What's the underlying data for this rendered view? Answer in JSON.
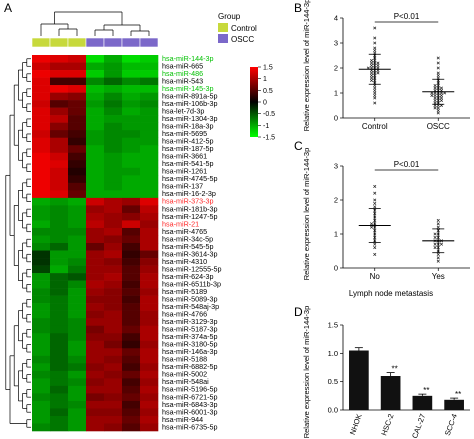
{
  "panels": {
    "A": "A",
    "B": "B",
    "C": "C",
    "D": "D"
  },
  "colors": {
    "control": "#c7d93c",
    "oscc": "#7b68c9",
    "heat_high": "#ff0000",
    "heat_mid": "#000000",
    "heat_low": "#00ff00",
    "label_green": "#00c000",
    "label_red": "#ff2a2a",
    "bar": "#111111"
  },
  "chart_data": [
    {
      "panel": "A",
      "type": "heatmap",
      "legend": {
        "title": "Group",
        "entries": [
          {
            "name": "Control",
            "color_key": "control"
          },
          {
            "name": "OSCC",
            "color_key": "oscc"
          }
        ]
      },
      "columns": [
        "Control",
        "Control",
        "Control",
        "OSCC",
        "OSCC",
        "OSCC",
        "OSCC"
      ],
      "colorbar": {
        "ticks": [
          "1.5",
          "1",
          "0.5",
          "0",
          "-0.5",
          "-1",
          "-1.5"
        ],
        "range": [
          -1.5,
          1.5
        ]
      },
      "rows": [
        {
          "label": "hsa-miR-144-3p",
          "color": "green",
          "values": [
            1.4,
            1.3,
            1.2,
            -1.3,
            -1.0,
            -1.3,
            -1.2
          ]
        },
        {
          "label": "hsa-miR-665",
          "color": "black",
          "values": [
            1.2,
            1.0,
            1.0,
            -1.0,
            -0.9,
            -1.1,
            -1.1
          ]
        },
        {
          "label": "hsa-miR-486",
          "color": "green",
          "values": [
            1.4,
            1.3,
            1.3,
            -1.2,
            -0.9,
            -1.2,
            -1.2
          ]
        },
        {
          "label": "hsa-miR-543",
          "color": "black",
          "values": [
            1.3,
            0.4,
            0.4,
            -0.8,
            -0.6,
            -0.8,
            -0.7
          ]
        },
        {
          "label": "hsa-miR-145-3p",
          "color": "green",
          "values": [
            1.3,
            1.4,
            1.3,
            -1.1,
            -1.0,
            -1.1,
            -1.1
          ]
        },
        {
          "label": "hsa-miR-891a-5p",
          "color": "black",
          "values": [
            1.3,
            0.9,
            0.8,
            -1.0,
            -0.8,
            -1.0,
            -0.9
          ]
        },
        {
          "label": "hsa-miR-106b-3p",
          "color": "black",
          "values": [
            1.2,
            0.5,
            0.6,
            -0.9,
            -0.7,
            -0.9,
            -0.8
          ]
        },
        {
          "label": "hsa-let-7d-3p",
          "color": "black",
          "values": [
            1.3,
            0.9,
            0.6,
            -1.0,
            -0.8,
            -1.0,
            -0.9
          ]
        },
        {
          "label": "hsa-miR-1304-3p",
          "color": "black",
          "values": [
            1.3,
            1.1,
            0.5,
            -1.0,
            -0.9,
            -0.9,
            -0.9
          ]
        },
        {
          "label": "hsa-miR-18a-3p",
          "color": "black",
          "values": [
            1.3,
            0.8,
            0.5,
            -1.0,
            -0.8,
            -0.9,
            -0.9
          ]
        },
        {
          "label": "hsa-miR-5695",
          "color": "black",
          "values": [
            1.2,
            0.6,
            0.4,
            -0.9,
            -0.8,
            -0.8,
            -0.9
          ]
        },
        {
          "label": "hsa-miR-412-5p",
          "color": "black",
          "values": [
            1.3,
            1.0,
            0.3,
            -0.9,
            -0.8,
            -0.9,
            -0.9
          ]
        },
        {
          "label": "hsa-miR-187-5p",
          "color": "black",
          "values": [
            1.3,
            1.0,
            0.6,
            -1.0,
            -0.8,
            -0.9,
            -1.0
          ]
        },
        {
          "label": "hsa-miR-3661",
          "color": "black",
          "values": [
            1.4,
            1.2,
            0.4,
            -1.0,
            -0.9,
            -1.0,
            -1.0
          ]
        },
        {
          "label": "hsa-miR-541-5p",
          "color": "black",
          "values": [
            1.4,
            1.3,
            0.3,
            -1.0,
            -0.9,
            -1.0,
            -1.0
          ]
        },
        {
          "label": "hsa-miR-1261",
          "color": "black",
          "values": [
            1.4,
            1.2,
            0.2,
            -1.0,
            -0.9,
            -0.9,
            -1.0
          ]
        },
        {
          "label": "hsa-miR-4745-5p",
          "color": "black",
          "values": [
            1.4,
            1.2,
            0.3,
            -1.0,
            -0.9,
            -1.0,
            -1.0
          ]
        },
        {
          "label": "hsa-miR-137",
          "color": "black",
          "values": [
            1.4,
            1.2,
            0.5,
            -1.0,
            -0.9,
            -1.0,
            -1.0
          ]
        },
        {
          "label": "hsa-miR-16-2-3p",
          "color": "black",
          "values": [
            1.4,
            1.3,
            0.6,
            -1.0,
            -1.0,
            -1.0,
            -1.0
          ]
        },
        {
          "label": "hsa-miR-373-3p",
          "color": "red",
          "values": [
            -1.0,
            -0.9,
            -1.0,
            1.2,
            1.0,
            0.9,
            1.3
          ]
        },
        {
          "label": "hsa-miR-181b-3p",
          "color": "black",
          "values": [
            -0.9,
            -0.8,
            -0.9,
            0.9,
            1.0,
            0.6,
            1.1
          ]
        },
        {
          "label": "hsa-miR-1247-5p",
          "color": "black",
          "values": [
            -0.9,
            -0.8,
            -0.9,
            1.0,
            0.9,
            0.8,
            1.0
          ]
        },
        {
          "label": "hsa-miR-21",
          "color": "red",
          "values": [
            -1.0,
            -0.8,
            -0.9,
            1.1,
            0.9,
            1.2,
            0.9
          ]
        },
        {
          "label": "hsa-miR-4765",
          "color": "black",
          "values": [
            -0.8,
            -0.8,
            -0.8,
            0.9,
            1.0,
            0.5,
            1.0
          ]
        },
        {
          "label": "hsa-miR-34c-5p",
          "color": "black",
          "values": [
            -0.9,
            -0.8,
            -0.9,
            0.9,
            0.8,
            0.6,
            1.0
          ]
        },
        {
          "label": "hsa-miR-545-5p",
          "color": "black",
          "values": [
            -0.8,
            -0.6,
            -0.9,
            0.6,
            0.9,
            0.4,
            1.0
          ]
        },
        {
          "label": "hsa-miR-3614-3p",
          "color": "black",
          "values": [
            -0.3,
            -0.9,
            -0.9,
            0.9,
            1.0,
            0.3,
            0.6
          ]
        },
        {
          "label": "hsa-miR-4310",
          "color": "black",
          "values": [
            -0.3,
            -0.9,
            -0.8,
            0.9,
            0.8,
            0.4,
            0.8
          ]
        },
        {
          "label": "hsa-miR-12555-5p",
          "color": "black",
          "values": [
            -0.4,
            -1.0,
            -0.7,
            0.9,
            0.9,
            0.5,
            0.9
          ]
        },
        {
          "label": "hsa-miR-624-3p",
          "color": "black",
          "values": [
            -0.9,
            -0.6,
            -0.5,
            0.9,
            1.0,
            0.5,
            1.0
          ]
        },
        {
          "label": "hsa-miR-6511b-3p",
          "color": "black",
          "values": [
            -0.9,
            -0.6,
            -0.8,
            1.0,
            0.9,
            0.4,
            1.0
          ]
        },
        {
          "label": "hsa-miR-5189",
          "color": "black",
          "values": [
            -0.8,
            -0.6,
            -0.9,
            0.9,
            0.8,
            0.5,
            0.9
          ]
        },
        {
          "label": "hsa-miR-5089-3p",
          "color": "black",
          "values": [
            -0.8,
            -0.7,
            -0.9,
            0.8,
            0.8,
            0.4,
            1.0
          ]
        },
        {
          "label": "hsa-miR-548aj-3p",
          "color": "black",
          "values": [
            -0.9,
            -0.7,
            -0.9,
            0.9,
            0.8,
            0.5,
            1.0
          ]
        },
        {
          "label": "hsa-miR-4766",
          "color": "black",
          "values": [
            -0.9,
            -0.7,
            -0.9,
            0.8,
            0.9,
            0.5,
            0.9
          ]
        },
        {
          "label": "hsa-miR-3129-3p",
          "color": "black",
          "values": [
            -0.8,
            -0.7,
            -0.8,
            0.9,
            0.9,
            0.5,
            0.9
          ]
        },
        {
          "label": "hsa-miR-5187-3p",
          "color": "black",
          "values": [
            -0.8,
            -0.7,
            -0.8,
            0.7,
            0.9,
            0.6,
            1.0
          ]
        },
        {
          "label": "hsa-miR-374a-5p",
          "color": "black",
          "values": [
            -0.9,
            -0.6,
            -0.8,
            0.8,
            0.8,
            0.4,
            1.0
          ]
        },
        {
          "label": "hsa-miR-3180-5p",
          "color": "black",
          "values": [
            -0.9,
            -0.6,
            -0.9,
            0.9,
            0.7,
            0.3,
            0.9
          ]
        },
        {
          "label": "hsa-miR-146a-3p",
          "color": "black",
          "values": [
            -0.9,
            -0.6,
            -0.9,
            0.9,
            0.9,
            0.6,
            1.0
          ]
        },
        {
          "label": "hsa-miR-5188",
          "color": "black",
          "values": [
            -0.8,
            -0.6,
            -0.8,
            0.9,
            0.8,
            0.5,
            1.0
          ]
        },
        {
          "label": "hsa-miR-6882-5p",
          "color": "black",
          "values": [
            -0.9,
            -0.6,
            -0.7,
            0.8,
            0.9,
            0.4,
            0.9
          ]
        },
        {
          "label": "hsa-miR-5002",
          "color": "black",
          "values": [
            -0.8,
            -0.7,
            -0.9,
            0.9,
            0.8,
            0.6,
            1.0
          ]
        },
        {
          "label": "hsa-miR-548ai",
          "color": "black",
          "values": [
            -0.9,
            -0.7,
            -0.8,
            0.8,
            0.9,
            0.4,
            0.9
          ]
        },
        {
          "label": "hsa-miR-5196-5p",
          "color": "black",
          "values": [
            -0.9,
            -0.6,
            -0.9,
            0.9,
            0.9,
            0.5,
            1.0
          ]
        },
        {
          "label": "hsa-miR-6721-5p",
          "color": "black",
          "values": [
            -0.8,
            -0.7,
            -0.9,
            0.7,
            0.8,
            0.6,
            0.9
          ]
        },
        {
          "label": "hsa-miR-6843-3p",
          "color": "black",
          "values": [
            -0.9,
            -0.7,
            -0.8,
            0.9,
            0.9,
            0.4,
            1.0
          ]
        },
        {
          "label": "hsa-miR-6001-3p",
          "color": "black",
          "values": [
            -0.9,
            -0.6,
            -0.9,
            0.8,
            0.8,
            0.5,
            0.9
          ]
        },
        {
          "label": "hsa-miR-944",
          "color": "black",
          "values": [
            -0.9,
            -0.7,
            -0.9,
            0.9,
            0.9,
            0.6,
            1.0
          ]
        },
        {
          "label": "hsa-miR-6735-5p",
          "color": "black",
          "values": [
            -0.8,
            -0.7,
            -0.9,
            0.9,
            0.8,
            0.5,
            0.9
          ]
        }
      ]
    },
    {
      "panel": "B",
      "type": "scatter",
      "categories": [
        "Control",
        "OSCC"
      ],
      "ylabel": "Relative expression level of miR-144-3p",
      "ylim": [
        0,
        4
      ],
      "yticks": [
        "0",
        "1",
        "2",
        "3",
        "4"
      ],
      "annotation": "P<0.01",
      "series": [
        {
          "values": [
            0.6,
            0.8,
            0.9,
            1.0,
            1.1,
            1.2,
            1.3,
            1.4,
            1.5,
            1.5,
            1.6,
            1.7,
            1.7,
            1.8,
            1.8,
            1.9,
            1.9,
            2.0,
            2.0,
            2.0,
            2.1,
            2.1,
            2.2,
            2.2,
            2.3,
            2.4,
            2.5,
            2.6,
            2.7,
            2.8,
            3.0,
            3.2,
            3.6,
            1.9,
            2.0,
            2.1,
            1.8,
            2.2,
            2.3,
            1.6
          ],
          "mean": 1.95,
          "sd": 0.6
        },
        {
          "values": [
            0.2,
            0.3,
            0.4,
            0.5,
            0.5,
            0.6,
            0.7,
            0.7,
            0.8,
            0.8,
            0.9,
            0.9,
            1.0,
            1.0,
            1.0,
            1.1,
            1.1,
            1.2,
            1.2,
            1.3,
            1.4,
            1.5,
            1.6,
            1.7,
            1.8,
            2.0,
            2.2,
            2.4,
            0.6,
            0.9,
            1.0,
            0.8,
            1.1,
            0.7,
            1.2,
            0.5,
            0.9,
            1.3,
            0.4,
            1.0
          ],
          "mean": 1.05,
          "sd": 0.5
        }
      ]
    },
    {
      "panel": "C",
      "type": "scatter",
      "categories": [
        "No",
        "Yes"
      ],
      "xlabel": "Lymph node metastasis",
      "ylabel": "Relative expression level of miR-144-3p",
      "ylim": [
        0,
        3
      ],
      "yticks": [
        "0",
        "1",
        "2",
        "3"
      ],
      "annotation": "P<0.01",
      "series": [
        {
          "values": [
            0.4,
            0.6,
            0.7,
            0.8,
            0.9,
            1.0,
            1.1,
            1.2,
            1.2,
            1.3,
            1.3,
            1.4,
            1.5,
            1.6,
            1.7,
            1.8,
            1.9,
            2.0,
            2.2,
            2.4
          ],
          "mean": 1.25,
          "sd": 0.5
        },
        {
          "values": [
            0.2,
            0.3,
            0.4,
            0.5,
            0.6,
            0.6,
            0.7,
            0.7,
            0.8,
            0.8,
            0.9,
            0.9,
            1.0,
            1.0,
            1.1,
            1.2,
            1.3,
            1.4,
            0.8,
            0.7
          ],
          "mean": 0.8,
          "sd": 0.35
        }
      ]
    },
    {
      "panel": "D",
      "type": "bar",
      "categories": [
        "NHOK",
        "HSC-2",
        "CAL-27",
        "SCC-4"
      ],
      "values": [
        1.05,
        0.6,
        0.25,
        0.18
      ],
      "errors": [
        0.05,
        0.06,
        0.03,
        0.03
      ],
      "significance": [
        "",
        "**",
        "**",
        "**"
      ],
      "ylabel": "Relative expression level of miR-144-3p",
      "ylim": [
        0,
        1.5
      ],
      "yticks": [
        "0.0",
        "0.5",
        "1.0",
        "1.5"
      ]
    }
  ]
}
